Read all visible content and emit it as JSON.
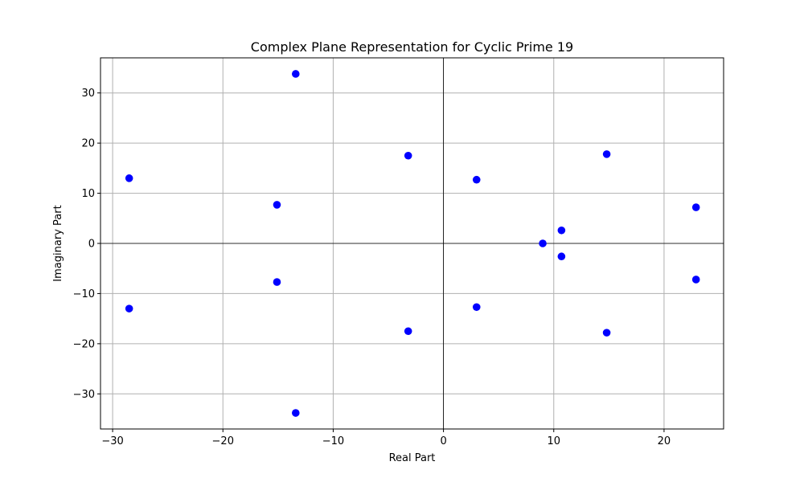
{
  "chart_data": {
    "type": "scatter",
    "title": "Complex Plane Representation for Cyclic Prime 19",
    "xlabel": "Real Part",
    "ylabel": "Imaginary Part",
    "xlim": [
      -31.1,
      25.4
    ],
    "ylim": [
      -37.0,
      37.0
    ],
    "xticks": [
      -30,
      -20,
      -10,
      0,
      10,
      20
    ],
    "yticks": [
      -30,
      -20,
      -10,
      0,
      10,
      20,
      30
    ],
    "grid": true,
    "zero_lines": true,
    "marker_color": "#0000ff",
    "points": [
      {
        "x": 9.0,
        "y": 0.0
      },
      {
        "x": 10.7,
        "y": 2.6
      },
      {
        "x": 10.7,
        "y": -2.6
      },
      {
        "x": 14.8,
        "y": 17.8
      },
      {
        "x": 14.8,
        "y": -17.8
      },
      {
        "x": 22.9,
        "y": 7.2
      },
      {
        "x": 22.9,
        "y": -7.2
      },
      {
        "x": 3.0,
        "y": 12.7
      },
      {
        "x": 3.0,
        "y": -12.7
      },
      {
        "x": -3.2,
        "y": 17.5
      },
      {
        "x": -3.2,
        "y": -17.5
      },
      {
        "x": -13.4,
        "y": 33.8
      },
      {
        "x": -13.4,
        "y": -33.8
      },
      {
        "x": -15.1,
        "y": 7.7
      },
      {
        "x": -15.1,
        "y": -7.7
      },
      {
        "x": -28.5,
        "y": 13.0
      },
      {
        "x": -28.5,
        "y": -13.0
      }
    ]
  }
}
